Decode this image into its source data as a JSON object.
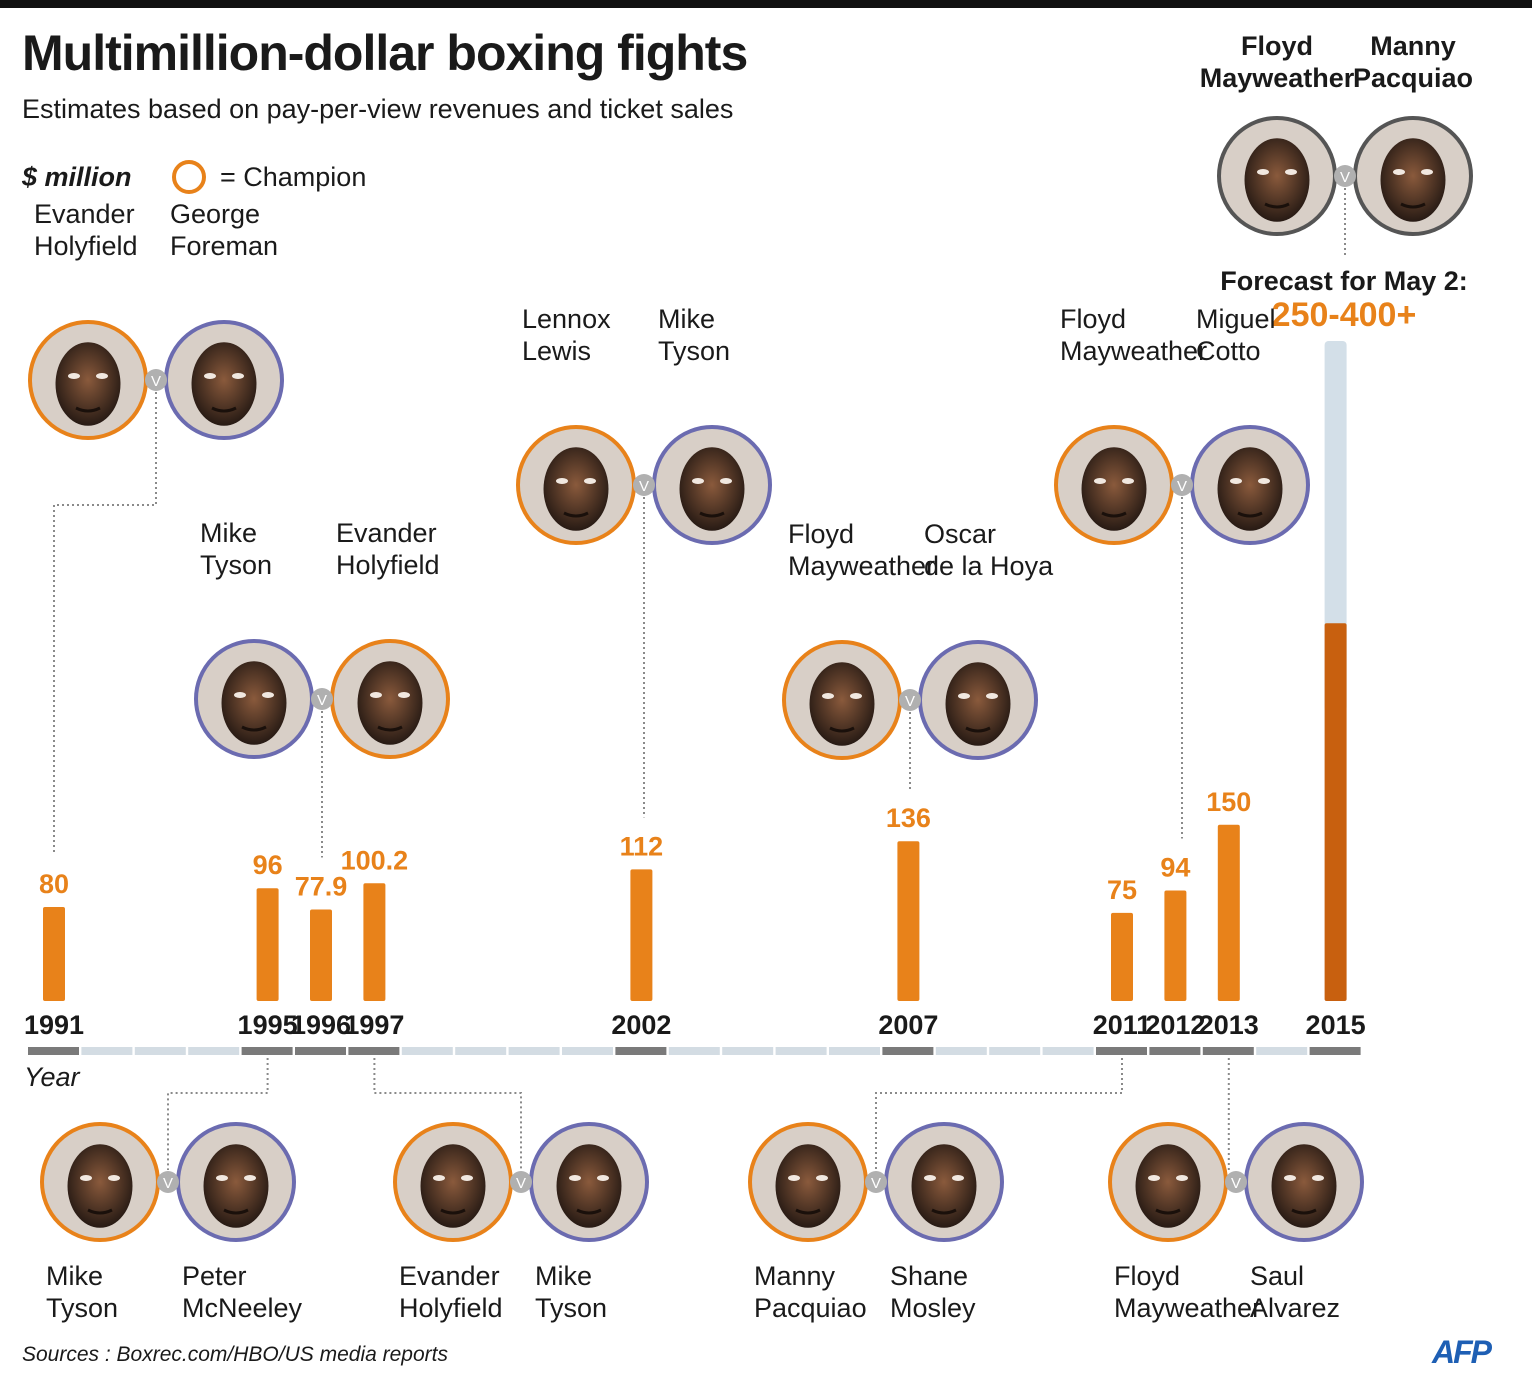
{
  "title": "Multimillion-dollar boxing fights",
  "subtitle": "Estimates based on pay-per-view revenues and ticket sales",
  "unit_label": "$ million",
  "legend_label": "= Champion",
  "axis_label": "Year",
  "source": "Sources : Boxrec.com/HBO/US media reports",
  "logo": "AFP",
  "forecast": {
    "label": "Forecast for May 2:",
    "value": "250-400+"
  },
  "colors": {
    "bar": "#e8821a",
    "forecast_bar": "#c8600f",
    "forecast_range": "#d3dfe8",
    "champion_ring": "#e8821a",
    "challenger_ring": "#6b6bb0",
    "axis_dark": "#7a7a7a",
    "axis_light": "#d3dce3"
  },
  "chart_data": {
    "type": "bar",
    "x_axis": {
      "start": 1991,
      "end": 2015,
      "unit": "year"
    },
    "categories": [
      "1991",
      "1995",
      "1996",
      "1997",
      "2002",
      "2007",
      "2011",
      "2012",
      "2013",
      "2015"
    ],
    "values": [
      80,
      96,
      77.9,
      100.2,
      112,
      136,
      75,
      94,
      150,
      null
    ],
    "value_labels": [
      "80",
      "96",
      "77.9",
      "100.2",
      "112",
      "136",
      "75",
      "94",
      "150",
      ""
    ],
    "forecast": {
      "year": 2015,
      "low": 250,
      "high": 400
    },
    "ylim": [
      0,
      400
    ],
    "fights": [
      {
        "year": "1991",
        "fighter1": "Evander\nHolyfield",
        "fighter2": "George\nForeman",
        "champion": 1
      },
      {
        "year": "1995",
        "fighter1": "Mike\nTyson",
        "fighter2": "Peter\nMcNeeley",
        "champion": 1
      },
      {
        "year": "1996",
        "fighter1": "Mike\nTyson",
        "fighter2": "Evander\nHolyfield",
        "champion": 2
      },
      {
        "year": "1997",
        "fighter1": "Evander\nHolyfield",
        "fighter2": "Mike\nTyson",
        "champion": 1
      },
      {
        "year": "2002",
        "fighter1": "Lennox\nLewis",
        "fighter2": "Mike\nTyson",
        "champion": 1
      },
      {
        "year": "2007",
        "fighter1": "Floyd\nMayweather",
        "fighter2": "Oscar\nde la Hoya",
        "champion": 1
      },
      {
        "year": "2011",
        "fighter1": "Manny\nPacquiao",
        "fighter2": "Shane\nMosley",
        "champion": 1
      },
      {
        "year": "2012",
        "fighter1": "Floyd\nMayweather",
        "fighter2": "Miguel\nCotto",
        "champion": 1
      },
      {
        "year": "2013",
        "fighter1": "Floyd\nMayweather",
        "fighter2": "Saul\nAlvarez",
        "champion": 1
      },
      {
        "year": "2015",
        "fighter1": "Floyd\nMayweather",
        "fighter2": "Manny\nPacquiao",
        "champion": 0
      }
    ]
  }
}
